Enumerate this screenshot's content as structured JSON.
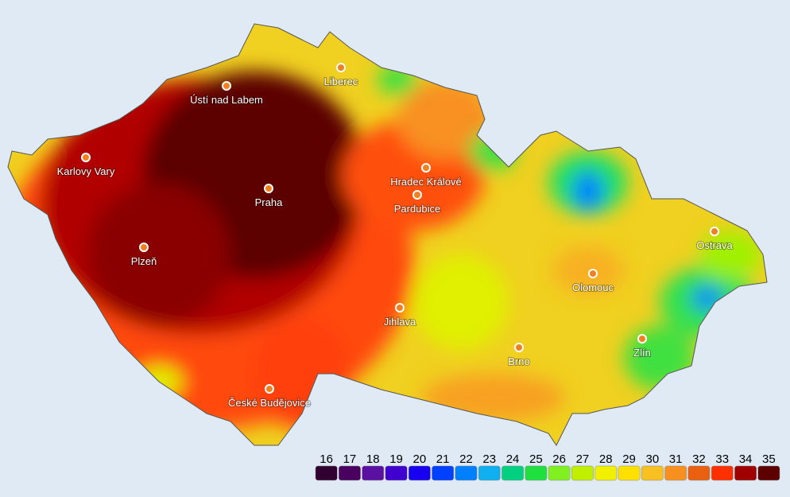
{
  "map": {
    "cities": [
      "Liberec",
      "Ústí nad Labem",
      "Karlovy Vary",
      "Praha",
      "Hradec Králové",
      "Pardubice",
      "Plzeň",
      "Jihlava",
      "Olomouc",
      "Ostrava",
      "Brno",
      "Zlín",
      "České Budějovice"
    ],
    "legend": {
      "values": [
        16,
        17,
        18,
        19,
        20,
        21,
        22,
        23,
        24,
        25,
        26,
        27,
        28,
        29,
        30,
        31,
        32,
        33,
        34,
        35
      ],
      "colors": [
        "#300030",
        "#4a0060",
        "#5a10a0",
        "#4000d0",
        "#1800f0",
        "#0040ff",
        "#0080ff",
        "#10b0f0",
        "#00d080",
        "#20e040",
        "#80f020",
        "#c0f000",
        "#f0f000",
        "#ffe000",
        "#f8c020",
        "#f89020",
        "#e86010",
        "#ff3000",
        "#a00000",
        "#5c0000"
      ]
    }
  }
}
